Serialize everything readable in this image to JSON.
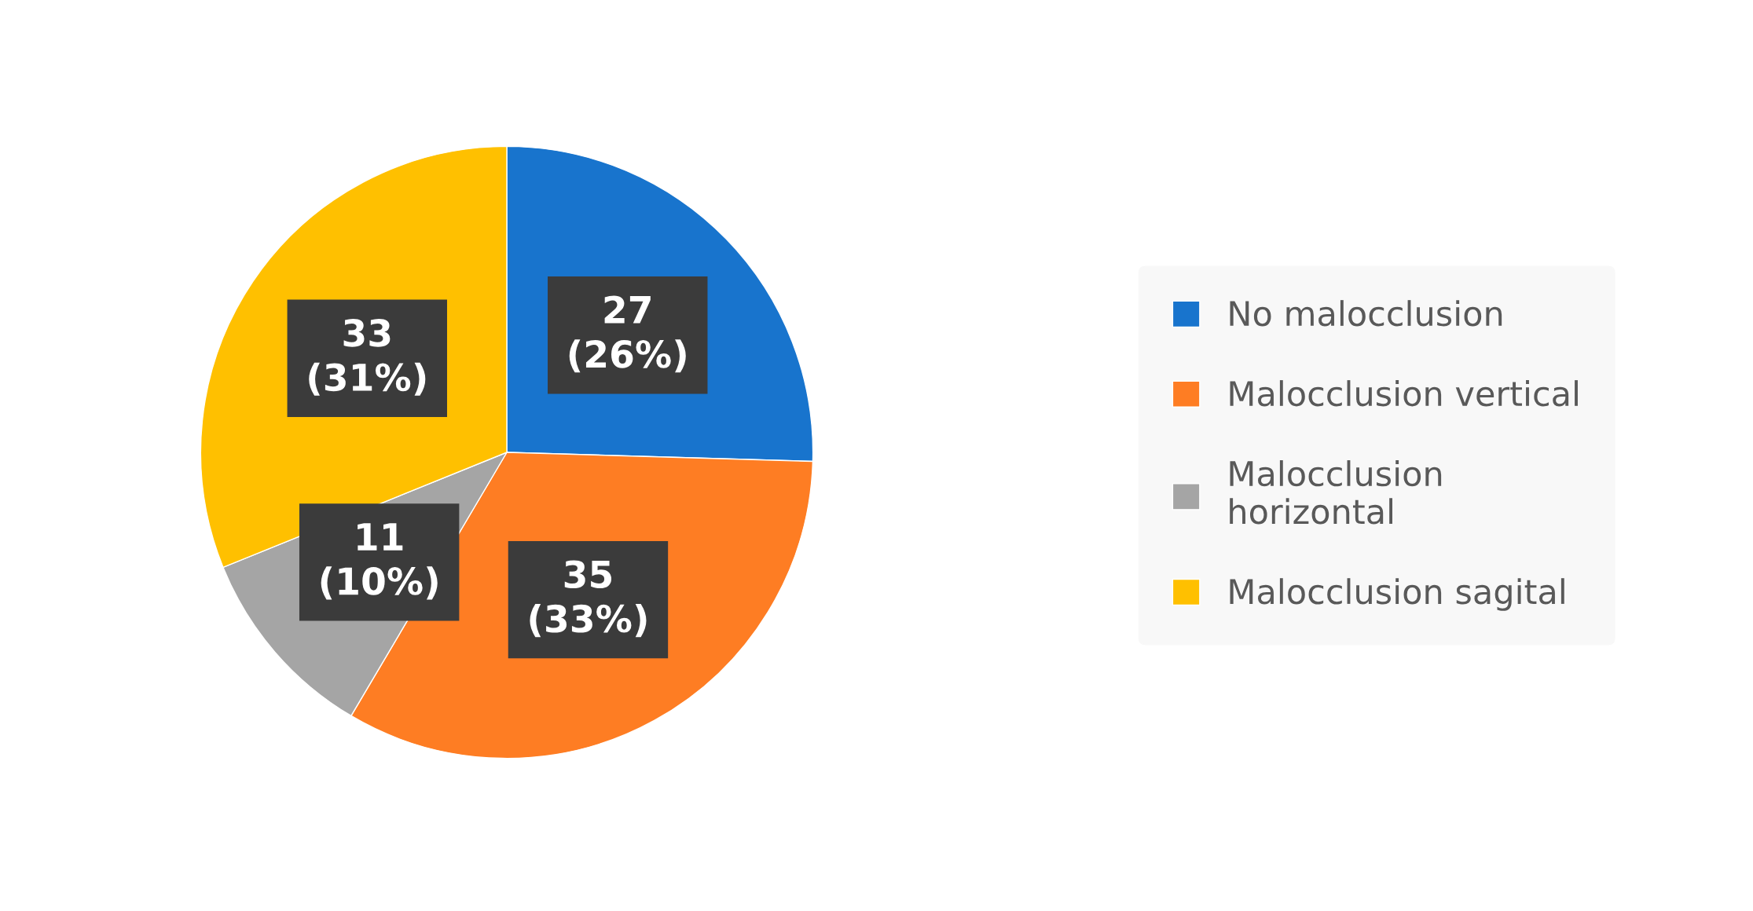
{
  "chart_data": {
    "type": "pie",
    "categories": [
      "No malocclusion",
      "Malocclusion vertical",
      "Malocclusion\nhorizontal",
      "Malocclusion sagital"
    ],
    "values": [
      27,
      35,
      11,
      33
    ],
    "colors": [
      "#1874cd",
      "#fe7d23",
      "#a5a5a5",
      "#ffc000"
    ],
    "value_labels": [
      "27\n(26%)",
      "35\n(33%)",
      "11\n(10%)",
      "33\n(31%)"
    ],
    "legend": "right"
  }
}
